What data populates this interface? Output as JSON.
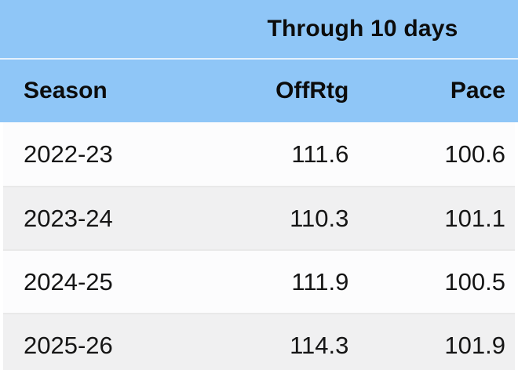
{
  "chart_data": {
    "type": "table",
    "title": "Through 10 days",
    "columns": [
      "Season",
      "OffRtg",
      "Pace"
    ],
    "rows": [
      [
        "2022-23",
        "111.6",
        "100.6"
      ],
      [
        "2023-24",
        "110.3",
        "101.1"
      ],
      [
        "2024-25",
        "111.9",
        "100.5"
      ],
      [
        "2025-26",
        "114.3",
        "101.9"
      ]
    ],
    "layout_hints": {
      "title_position": "centered-over-numeric-columns",
      "column_alignment": [
        "left",
        "right",
        "right"
      ],
      "row_striping": [
        "white",
        "gray",
        "white",
        "gray"
      ]
    }
  },
  "ui": {
    "colors": {
      "header_blue": "#8FC6F7",
      "title_divider": "#E4F1FD",
      "row_white": "#FCFCFD",
      "row_gray": "#F0F0F1",
      "row_border": "#E9E9E9",
      "text": "#0C0C0C"
    }
  }
}
